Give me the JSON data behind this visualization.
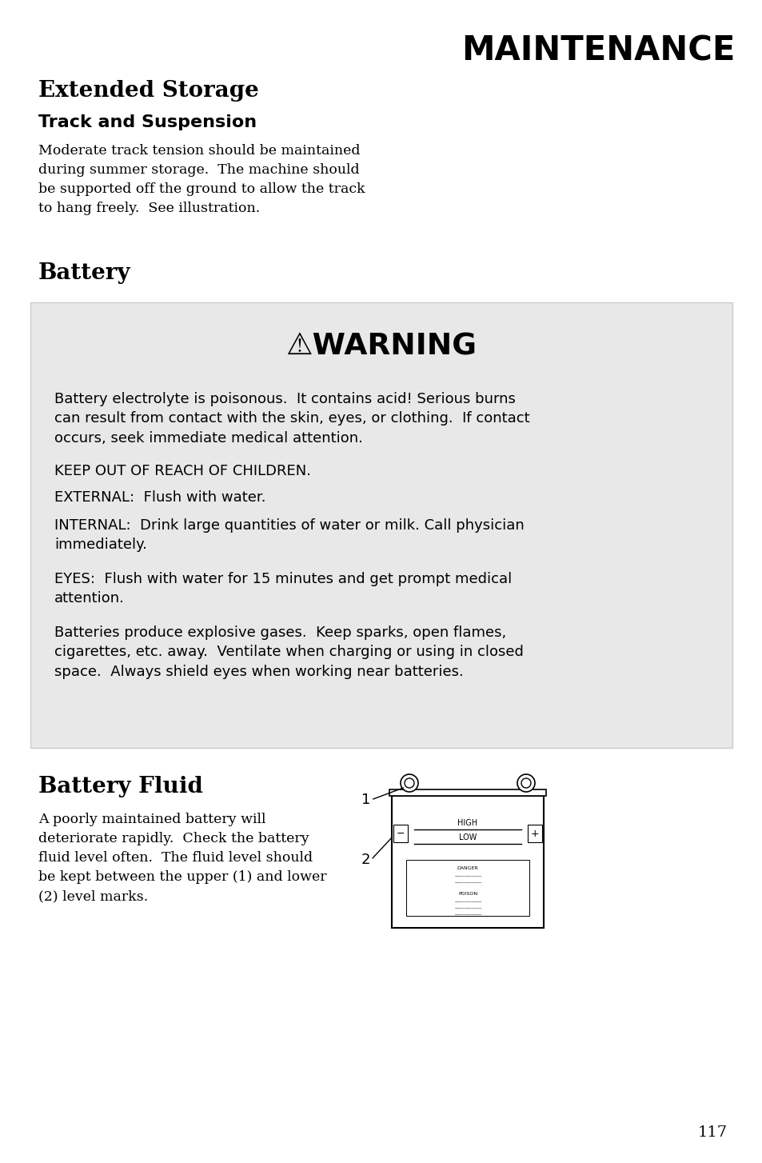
{
  "page_bg": "#ffffff",
  "page_num": "117",
  "header_title": "MAINTENANCE",
  "section1_title": "Extended Storage",
  "section1_sub": "Track and Suspension",
  "section1_body": "Moderate track tension should be maintained\nduring summer storage.  The machine should\nbe supported off the ground to allow the track\nto hang freely.  See illustration.",
  "section2_title": "Battery",
  "warning_bg": "#e8e8e8",
  "warning_title": "⚠WARNING",
  "warning_text1": "Battery electrolyte is poisonous.  It contains acid! Serious burns\ncan result from contact with the skin, eyes, or clothing.  If contact\noccurs, seek immediate medical attention.",
  "warning_text2": "KEEP OUT OF REACH OF CHILDREN.",
  "warning_text3": "EXTERNAL:  Flush with water.",
  "warning_text4": "INTERNAL:  Drink large quantities of water or milk. Call physician\nimmediately.",
  "warning_text5": "EYES:  Flush with water for 15 minutes and get prompt medical\nattention.",
  "warning_text6": "Batteries produce explosive gases.  Keep sparks, open flames,\ncigarettes, etc. away.  Ventilate when charging or using in closed\nspace.  Always shield eyes when working near batteries.",
  "section3_title": "Battery Fluid",
  "section3_body": "A poorly maintained battery will\ndeteriorate rapidly.  Check the battery\nfluid level often.  The fluid level should\nbe kept between the upper (1) and lower\n(2) level marks.",
  "font_color": "#000000"
}
